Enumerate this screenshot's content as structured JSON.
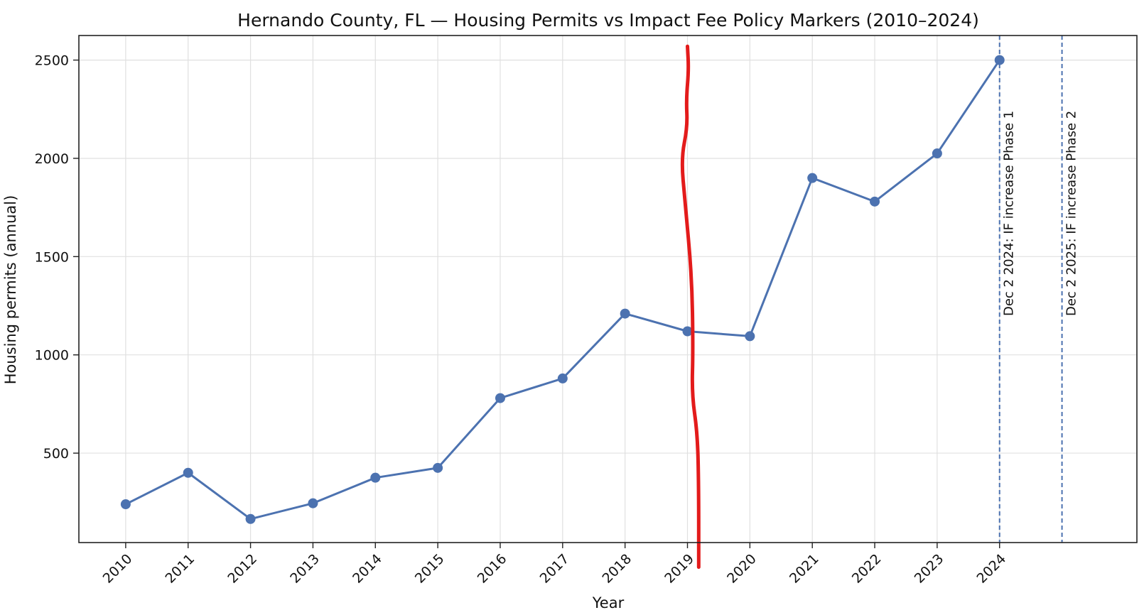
{
  "chart_data": {
    "type": "line",
    "title": "Hernando County, FL — Housing Permits vs Impact Fee Policy Markers (2010–2024)",
    "xlabel": "Year",
    "ylabel": "Housing permits (annual)",
    "categories": [
      "2010",
      "2011",
      "2012",
      "2013",
      "2014",
      "2015",
      "2016",
      "2017",
      "2018",
      "2019",
      "2020",
      "2021",
      "2022",
      "2023",
      "2024"
    ],
    "series": [
      {
        "name": "Housing permits",
        "color": "#4c72b0",
        "values": [
          240,
          400,
          165,
          245,
          375,
          425,
          780,
          880,
          1210,
          1120,
          1095,
          1900,
          1780,
          2025,
          2500
        ]
      }
    ],
    "xlim": [
      2009.25,
      2026.2
    ],
    "ylim": [
      45,
      2625
    ],
    "yticks": [
      500,
      1000,
      1500,
      2000,
      2500
    ],
    "grid": true,
    "markers": [
      {
        "x": 2024.0,
        "label": "Dec 2 2024: IF increase Phase 1",
        "color": "#4c72b0",
        "style": "dashed"
      },
      {
        "x": 2025.0,
        "label": "Dec 2 2025: IF increase Phase 2",
        "color": "#4c72b0",
        "style": "dashed"
      }
    ],
    "freehand_mark": {
      "color": "#e31b1b",
      "description": "hand-drawn red vertical line near 2019",
      "points": [
        [
          2019.0,
          2570
        ],
        [
          2019.02,
          2450
        ],
        [
          2018.98,
          2300
        ],
        [
          2019.0,
          2160
        ],
        [
          2018.9,
          2000
        ],
        [
          2018.96,
          1780
        ],
        [
          2019.07,
          1400
        ],
        [
          2019.09,
          1030
        ],
        [
          2019.07,
          800
        ],
        [
          2019.16,
          600
        ],
        [
          2019.18,
          330
        ],
        [
          2019.18,
          -80
        ]
      ]
    }
  }
}
